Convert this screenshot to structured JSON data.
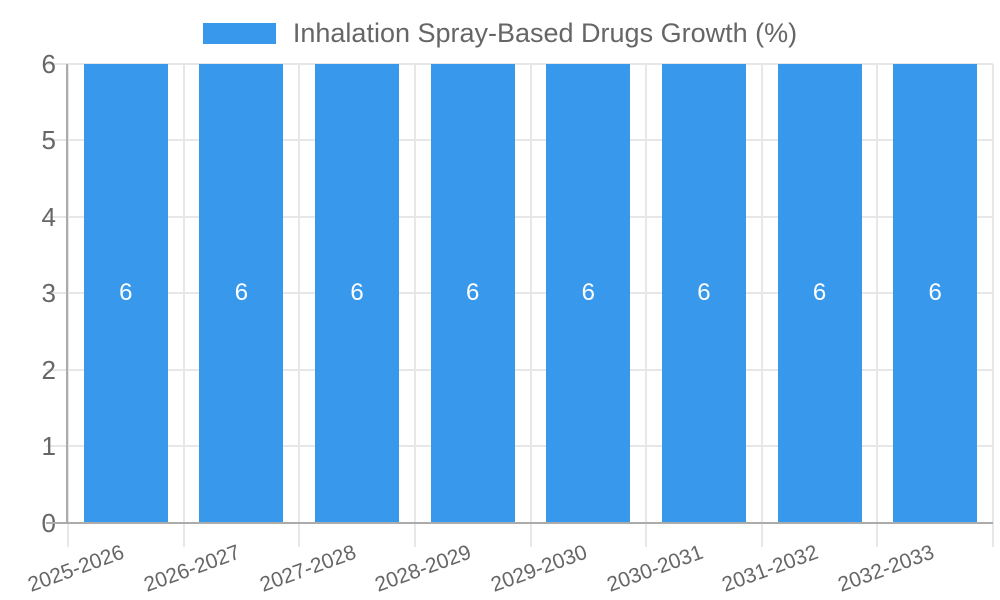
{
  "legend": {
    "label": "Inhalation Spray-Based Drugs Growth (%)"
  },
  "colors": {
    "bar": "#3899EC",
    "grid": "#E7E7E7",
    "axis": "#ABABAB",
    "text": "#666666",
    "value_label": "#FFFFFF",
    "background": "#FFFFFF"
  },
  "chart_data": {
    "type": "bar",
    "title": "Inhalation Spray-Based Drugs Growth (%)",
    "categories": [
      "2025-2026",
      "2026-2027",
      "2027-2028",
      "2028-2029",
      "2029-2030",
      "2030-2031",
      "2031-2032",
      "2032-2033"
    ],
    "values": [
      6,
      6,
      6,
      6,
      6,
      6,
      6,
      6
    ],
    "value_labels": [
      "6",
      "6",
      "6",
      "6",
      "6",
      "6",
      "6",
      "6"
    ],
    "xlabel": "",
    "ylabel": "",
    "ylim": [
      0,
      6
    ],
    "yticks": [
      0,
      1,
      2,
      3,
      4,
      5,
      6
    ],
    "grid": true,
    "legend_position": "top",
    "value_label_position": "center"
  }
}
